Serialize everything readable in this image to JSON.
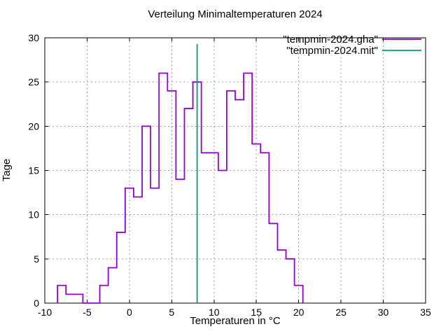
{
  "title": "Verteilung Minimaltemperaturen 2024",
  "x_axis": {
    "label": "Temperaturen in °C",
    "min": -10,
    "max": 35,
    "ticks": [
      -10,
      -5,
      0,
      5,
      10,
      15,
      20,
      25,
      30,
      35
    ]
  },
  "y_axis": {
    "label": "Tage",
    "min": 0,
    "max": 30,
    "ticks": [
      0,
      5,
      10,
      15,
      20,
      25,
      30
    ]
  },
  "legend": {
    "entries": [
      {
        "label": "\"tempmin-2024.gha\"",
        "color": "#9400d3"
      },
      {
        "label": "\"tempmin-2024.mit\"",
        "color": "#009e73"
      }
    ]
  },
  "colors": {
    "series": "#9400d3",
    "mean_line": "#009e73",
    "grid": "#9e9e9e",
    "frame": "#000000",
    "background": "#ffffff"
  },
  "chart_data": {
    "type": "histogram-steps",
    "title": "Verteilung Minimaltemperaturen 2024",
    "xlabel": "Temperaturen in °C",
    "ylabel": "Tage",
    "xlim": [
      -10,
      35
    ],
    "ylim": [
      0,
      30
    ],
    "x_ticks": [
      -10,
      -5,
      0,
      5,
      10,
      15,
      20,
      25,
      30,
      35
    ],
    "y_ticks": [
      0,
      5,
      10,
      15,
      20,
      25,
      30
    ],
    "grid": true,
    "legend_position": "top-right-inside",
    "series": [
      {
        "name": "\"tempmin-2024.gha\"",
        "style": "histeps",
        "color": "#9400d3",
        "bin_width": 1,
        "bin_centers": [
          -8,
          -7,
          -6,
          -5,
          -4,
          -3,
          -2,
          -1,
          0,
          1,
          2,
          3,
          4,
          5,
          6,
          7,
          8,
          9,
          10,
          11,
          12,
          13,
          14,
          15,
          16,
          17,
          18,
          19,
          20
        ],
        "counts": [
          2,
          1,
          1,
          0,
          0,
          2,
          4,
          8,
          13,
          12,
          20,
          13,
          26,
          24,
          14,
          22,
          25,
          17,
          17,
          15,
          24,
          23,
          26,
          18,
          17,
          9,
          6,
          5,
          2
        ]
      },
      {
        "name": "\"tempmin-2024.mit\"",
        "style": "vline",
        "color": "#009e73",
        "x": 8.0,
        "y_span": [
          0,
          29.3
        ]
      }
    ]
  }
}
